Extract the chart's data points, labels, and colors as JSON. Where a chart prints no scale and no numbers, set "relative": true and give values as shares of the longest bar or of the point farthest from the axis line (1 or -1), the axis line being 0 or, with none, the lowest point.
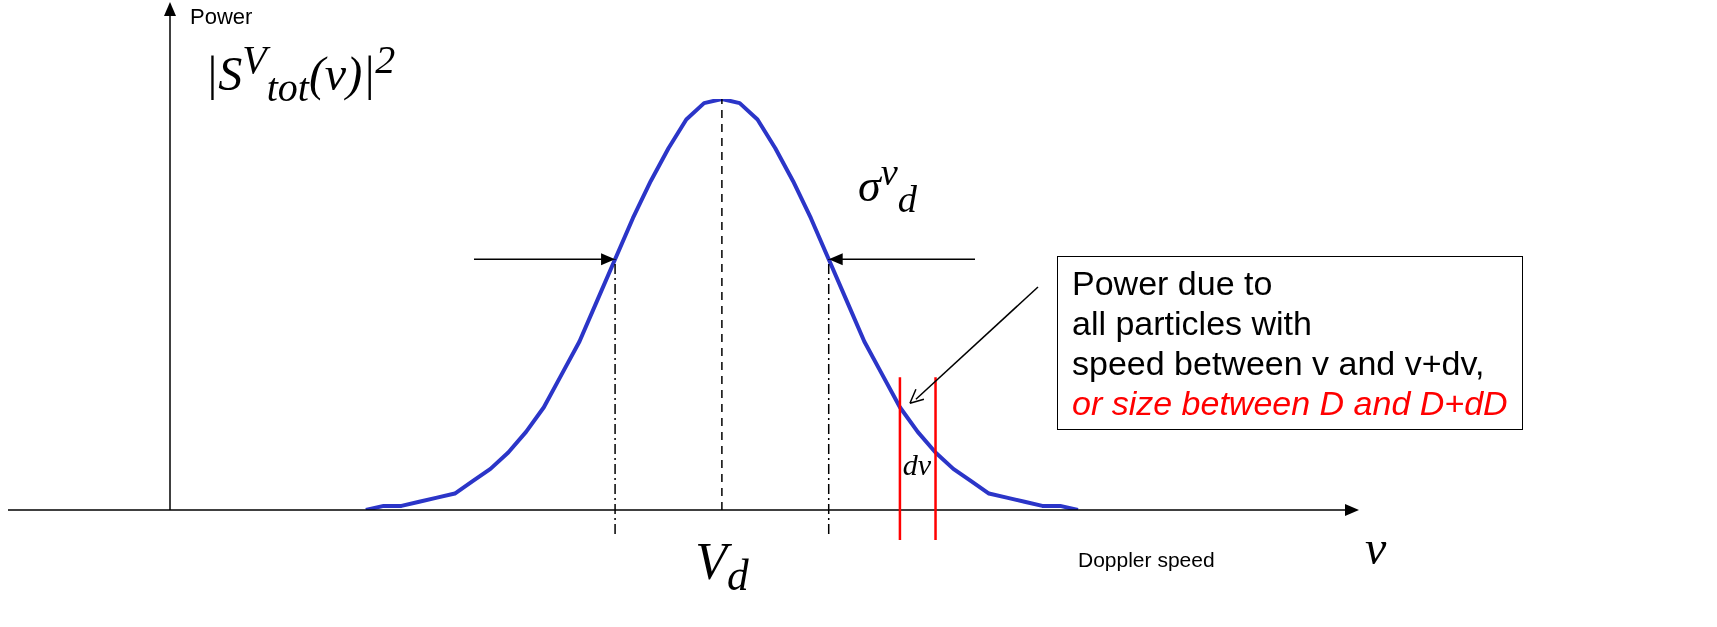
{
  "chart_data": {
    "type": "line",
    "categories": [
      null,
      null,
      null,
      null,
      null,
      null,
      null,
      null,
      null,
      null,
      null,
      null,
      null,
      null,
      null,
      null,
      null,
      null,
      null,
      null,
      null,
      null,
      null,
      null,
      null,
      null,
      null,
      null,
      null,
      null,
      null,
      null,
      null,
      null,
      null,
      null,
      null,
      null,
      null,
      null,
      null,
      null,
      null,
      null,
      null,
      null,
      null,
      null,
      null,
      null,
      null,
      null,
      null,
      null,
      null,
      null,
      null,
      null,
      null,
      null,
      null,
      null,
      null,
      null,
      null,
      null,
      null
    ],
    "series": [
      {
        "color": "#2b35c8",
        "values": [
          null,
          null,
          null,
          null,
          null,
          null,
          null,
          null,
          null,
          null,
          null,
          0,
          0.01,
          0.01,
          0.02,
          0.03,
          0.04,
          0.07,
          0.1,
          0.14,
          0.19,
          0.25,
          0.33,
          0.41,
          0.51,
          0.61,
          0.71,
          0.8,
          0.88,
          0.95,
          0.99,
          1,
          0.99,
          0.95,
          0.88,
          0.8,
          0.71,
          0.61,
          0.51,
          0.41,
          0.33,
          0.25,
          0.19,
          0.14,
          0.1,
          0.07,
          0.04,
          0.03,
          0.02,
          0.01,
          0.01,
          0,
          null,
          null,
          null,
          null,
          null,
          null,
          null,
          null,
          null,
          null,
          null,
          null,
          null,
          null,
          null
        ]
      }
    ],
    "relative": true,
    "annotations": [
      "Power",
      "|S$^{V}$$_{tot}$(v)|$^{2}$",
      "σ$^{v}$$_{d}$",
      "dv",
      "Doppler speed",
      "v",
      "Power due to\nall particles with\nspeed between v and v+dv,",
      "or size between D and D+dD",
      "V$_{d}$"
    ]
  }
}
